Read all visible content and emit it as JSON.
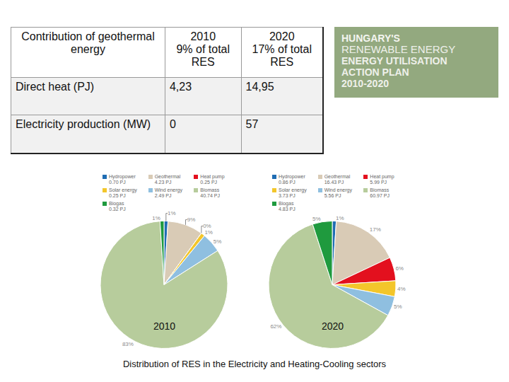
{
  "table": {
    "header": [
      [
        "Contribution of geothermal energy"
      ],
      [
        "2010",
        "9% of total RES"
      ],
      [
        "2020",
        "17% of total RES"
      ]
    ],
    "rows": [
      [
        "Direct heat (PJ)",
        "4,23",
        "14,95"
      ],
      [
        "Electricity production (MW)",
        "0",
        "57"
      ]
    ]
  },
  "logo": {
    "lines": [
      "HUNGARY'S",
      "RENEWABLE ENERGY",
      "ENERGY UTILISATION",
      "ACTION PLAN",
      "2010-2020"
    ]
  },
  "chart_data": [
    {
      "type": "pie",
      "title": "2010",
      "categories": [
        "Hydropower",
        "Geothermal",
        "Heat pump",
        "Solar energy",
        "Wind energy",
        "Biomass",
        "Biogas"
      ],
      "values": [
        1,
        9,
        0,
        1,
        5,
        83,
        1
      ],
      "value_labels": [
        "1%",
        "9%",
        "0%",
        "1%",
        "5%",
        "83%",
        "1%"
      ],
      "amounts": [
        "0.70 PJ",
        "4.23 PJ",
        "0.25 PJ",
        "0.25 PJ",
        "2.49 PJ",
        "40.74 PJ",
        "0.32 PJ"
      ],
      "colors": [
        "#1f6db3",
        "#d9cbb6",
        "#e3101e",
        "#f3c62b",
        "#8fbfe0",
        "#b7cc9c",
        "#1f9a3e"
      ],
      "data_labels": true
    },
    {
      "type": "pie",
      "title": "2020",
      "categories": [
        "Hydropower",
        "Geothermal",
        "Heat pump",
        "Solar energy",
        "Wind energy",
        "Biomass",
        "Biogas"
      ],
      "values": [
        1,
        17,
        6,
        4,
        5,
        62,
        5
      ],
      "value_labels": [
        "1%",
        "17%",
        "6%",
        "4%",
        "5%",
        "62%",
        "5%"
      ],
      "amounts": [
        "0.86 PJ",
        "16.43 PJ",
        "5.99 PJ",
        "3.73 PJ",
        "5.56 PJ",
        "60.97 PJ",
        "4.83 PJ"
      ],
      "colors": [
        "#1f6db3",
        "#d9cbb6",
        "#e3101e",
        "#f3c62b",
        "#8fbfe0",
        "#b7cc9c",
        "#1f9a3e"
      ],
      "data_labels": true
    }
  ],
  "caption": "Distribution of RES in the Electricity and Heating-Cooling sectors"
}
